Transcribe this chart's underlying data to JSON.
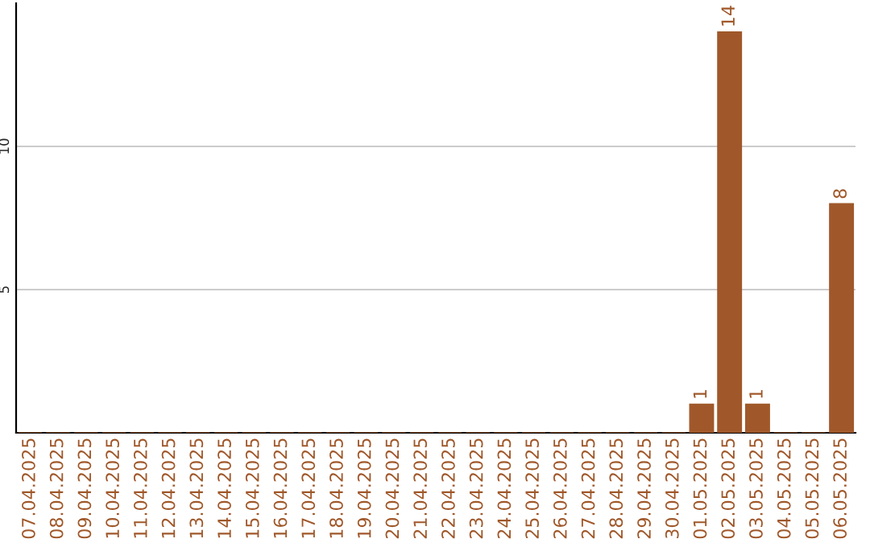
{
  "chart_data": {
    "type": "bar",
    "categories": [
      "07.04.2025",
      "08.04.2025",
      "09.04.2025",
      "10.04.2025",
      "11.04.2025",
      "12.04.2025",
      "13.04.2025",
      "14.04.2025",
      "15.04.2025",
      "16.04.2025",
      "17.04.2025",
      "18.04.2025",
      "19.04.2025",
      "20.04.2025",
      "21.04.2025",
      "22.04.2025",
      "23.04.2025",
      "24.04.2025",
      "25.04.2025",
      "26.04.2025",
      "27.04.2025",
      "28.04.2025",
      "29.04.2025",
      "30.04.2025",
      "01.05.2025",
      "02.05.2025",
      "03.05.2025",
      "04.05.2025",
      "05.05.2025",
      "06.05.2025"
    ],
    "values": [
      0,
      0,
      0,
      0,
      0,
      0,
      0,
      0,
      0,
      0,
      0,
      0,
      0,
      0,
      0,
      0,
      0,
      0,
      0,
      0,
      0,
      0,
      0,
      0,
      1,
      14,
      1,
      0,
      0,
      8
    ],
    "value_labels": [
      null,
      null,
      null,
      null,
      null,
      null,
      null,
      null,
      null,
      null,
      null,
      null,
      null,
      null,
      null,
      null,
      null,
      null,
      null,
      null,
      null,
      null,
      null,
      null,
      "1",
      "14",
      "1",
      null,
      null,
      "8"
    ],
    "color": "#a0582a",
    "ylim": [
      0,
      15
    ],
    "yticks": [
      5,
      10
    ],
    "grid": "y"
  }
}
